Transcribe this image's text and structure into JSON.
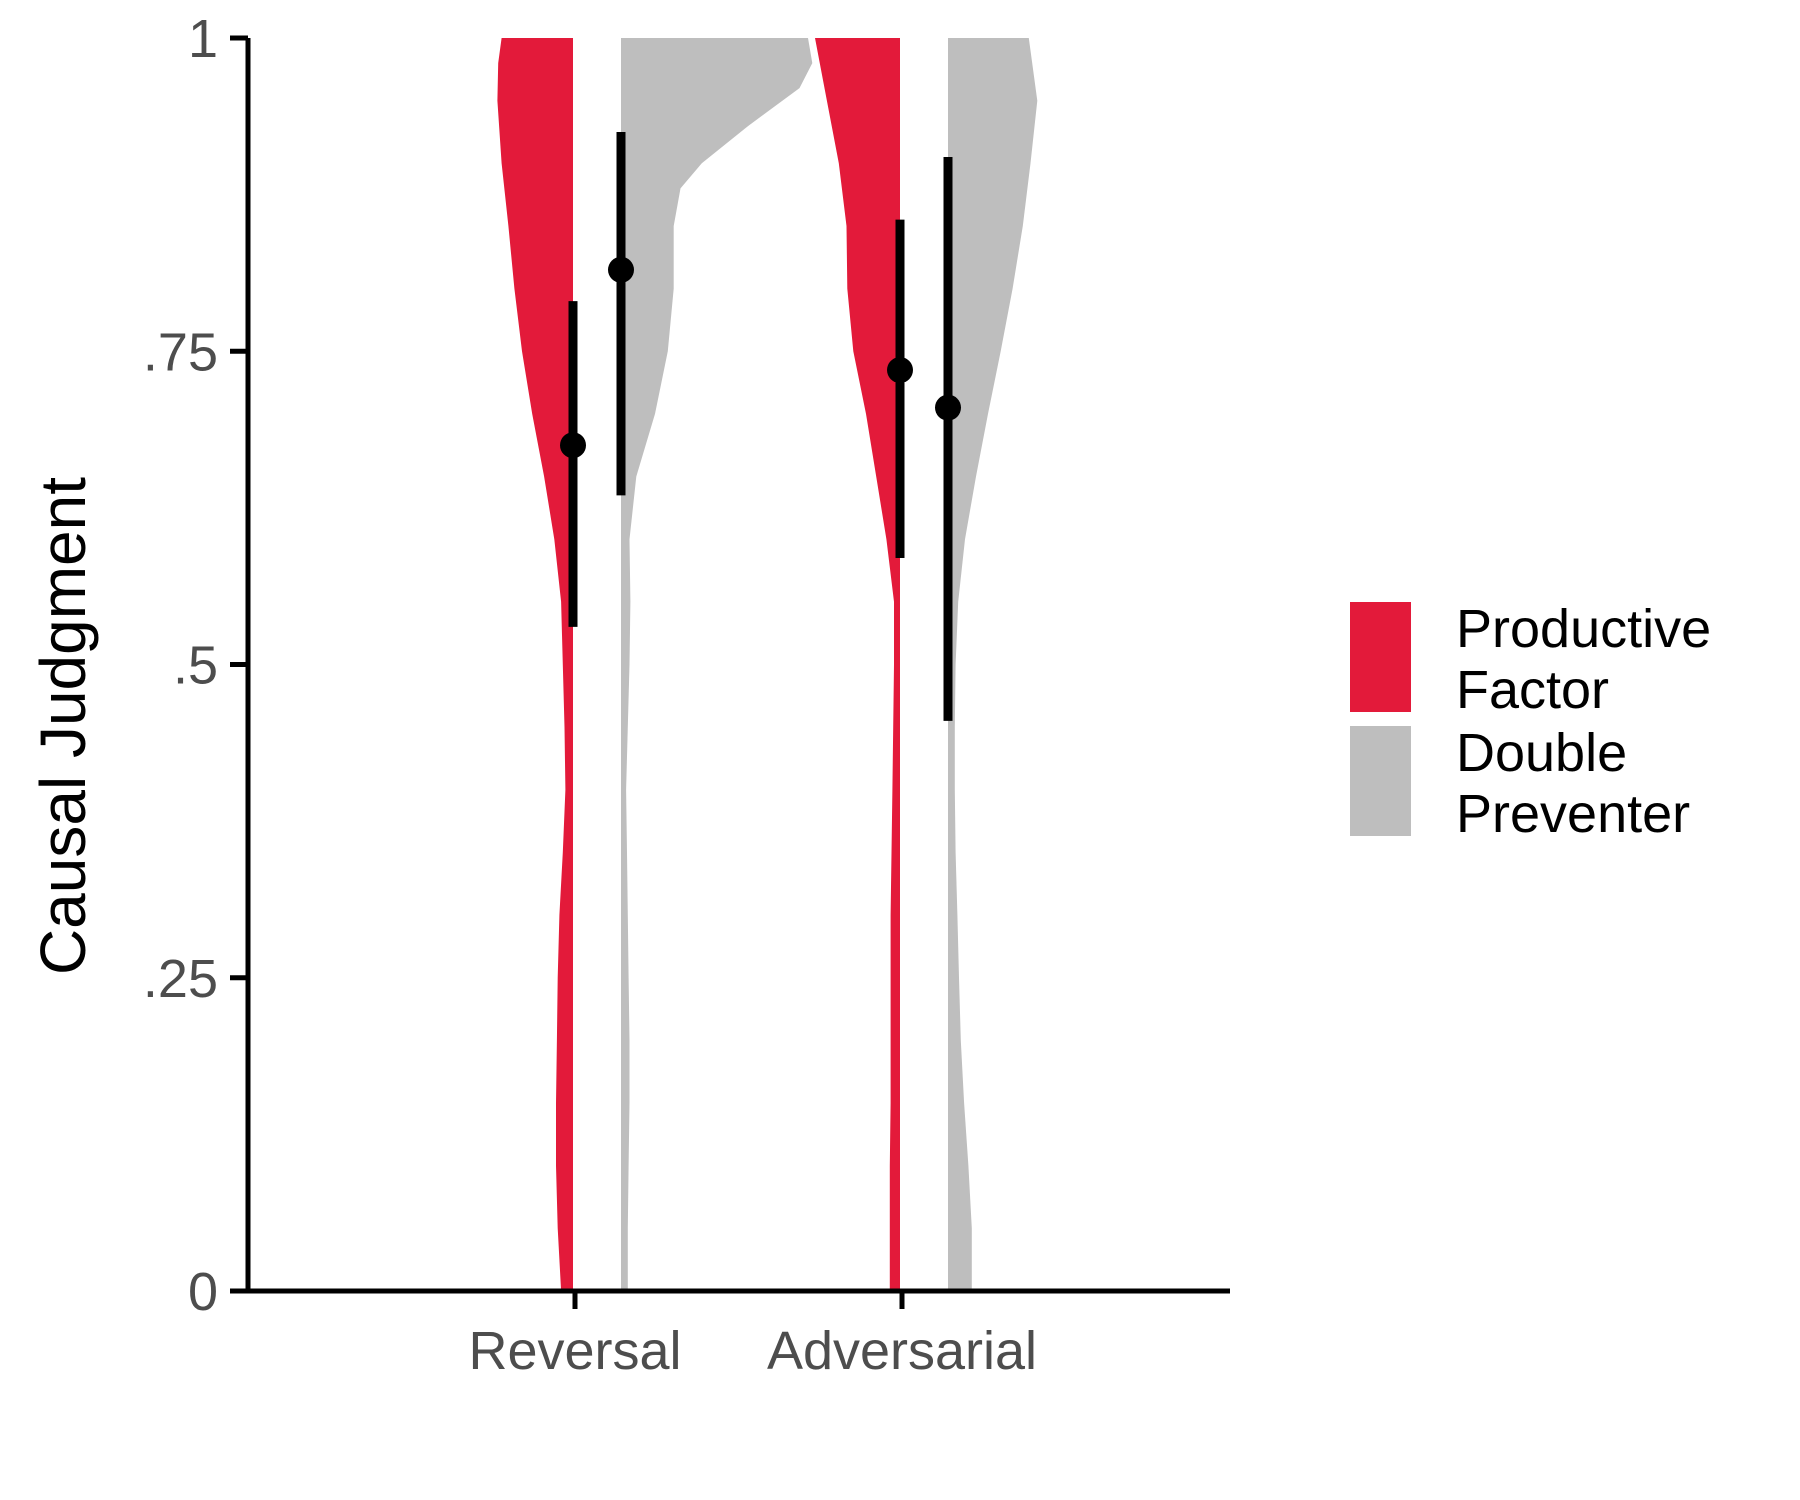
{
  "chart_data": {
    "type": "violin",
    "title": "",
    "xlabel": "",
    "ylabel": "Causal Judgment",
    "ylim": [
      0,
      1
    ],
    "yticks": [
      {
        "value": 0,
        "label": "0"
      },
      {
        "value": 0.25,
        "label": ".25"
      },
      {
        "value": 0.5,
        "label": ".5"
      },
      {
        "value": 0.75,
        "label": ".75"
      },
      {
        "value": 1,
        "label": "1"
      }
    ],
    "categories": [
      "Reversal",
      "Adversarial"
    ],
    "grid": false,
    "legend_position": "right",
    "series": [
      {
        "name": "Productive Factor",
        "name_lines": [
          "Productive",
          "Factor"
        ],
        "color": "#e31a3a",
        "side": "left",
        "points": [
          {
            "category": "Reversal",
            "mean": 0.675,
            "ci_low": 0.53,
            "ci_high": 0.79
          },
          {
            "category": "Adversarial",
            "mean": 0.735,
            "ci_low": 0.585,
            "ci_high": 0.855
          }
        ],
        "density": [
          {
            "category": "Reversal",
            "profile": [
              [
                0.0,
                0.14
              ],
              [
                0.05,
                0.18
              ],
              [
                0.1,
                0.2
              ],
              [
                0.15,
                0.2
              ],
              [
                0.2,
                0.19
              ],
              [
                0.25,
                0.18
              ],
              [
                0.3,
                0.16
              ],
              [
                0.35,
                0.12
              ],
              [
                0.4,
                0.09
              ],
              [
                0.45,
                0.1
              ],
              [
                0.5,
                0.12
              ],
              [
                0.55,
                0.14
              ],
              [
                0.6,
                0.22
              ],
              [
                0.65,
                0.34
              ],
              [
                0.7,
                0.48
              ],
              [
                0.75,
                0.6
              ],
              [
                0.8,
                0.69
              ],
              [
                0.85,
                0.76
              ],
              [
                0.9,
                0.84
              ],
              [
                0.95,
                0.89
              ],
              [
                0.98,
                0.88
              ],
              [
                1.0,
                0.84
              ]
            ]
          },
          {
            "category": "Adversarial",
            "profile": [
              [
                0.0,
                0.12
              ],
              [
                0.05,
                0.12
              ],
              [
                0.1,
                0.12
              ],
              [
                0.15,
                0.11
              ],
              [
                0.2,
                0.11
              ],
              [
                0.25,
                0.11
              ],
              [
                0.3,
                0.11
              ],
              [
                0.35,
                0.1
              ],
              [
                0.4,
                0.09
              ],
              [
                0.45,
                0.08
              ],
              [
                0.5,
                0.07
              ],
              [
                0.55,
                0.07
              ],
              [
                0.6,
                0.16
              ],
              [
                0.65,
                0.28
              ],
              [
                0.7,
                0.4
              ],
              [
                0.75,
                0.55
              ],
              [
                0.8,
                0.62
              ],
              [
                0.85,
                0.63
              ],
              [
                0.9,
                0.72
              ],
              [
                0.95,
                0.86
              ],
              [
                1.0,
                1.0
              ]
            ]
          }
        ]
      },
      {
        "name": "Double Preventer",
        "name_lines": [
          "Double",
          "Preventer"
        ],
        "color": "#bebebe",
        "side": "right",
        "points": [
          {
            "category": "Reversal",
            "mean": 0.815,
            "ci_low": 0.635,
            "ci_high": 0.925
          },
          {
            "category": "Adversarial",
            "mean": 0.705,
            "ci_low": 0.455,
            "ci_high": 0.905
          }
        ],
        "density": [
          {
            "category": "Reversal",
            "profile": [
              [
                0.0,
                0.08
              ],
              [
                0.05,
                0.08
              ],
              [
                0.1,
                0.09
              ],
              [
                0.15,
                0.1
              ],
              [
                0.2,
                0.1
              ],
              [
                0.25,
                0.09
              ],
              [
                0.3,
                0.08
              ],
              [
                0.35,
                0.07
              ],
              [
                0.4,
                0.06
              ],
              [
                0.45,
                0.08
              ],
              [
                0.5,
                0.1
              ],
              [
                0.55,
                0.11
              ],
              [
                0.6,
                0.1
              ],
              [
                0.65,
                0.18
              ],
              [
                0.7,
                0.4
              ],
              [
                0.75,
                0.55
              ],
              [
                0.8,
                0.62
              ],
              [
                0.85,
                0.62
              ],
              [
                0.88,
                0.7
              ],
              [
                0.9,
                0.95
              ],
              [
                0.93,
                1.5
              ],
              [
                0.96,
                2.1
              ],
              [
                0.98,
                2.25
              ],
              [
                1.0,
                2.2
              ]
            ]
          },
          {
            "category": "Adversarial",
            "profile": [
              [
                0.0,
                0.28
              ],
              [
                0.05,
                0.28
              ],
              [
                0.1,
                0.24
              ],
              [
                0.15,
                0.19
              ],
              [
                0.2,
                0.15
              ],
              [
                0.25,
                0.13
              ],
              [
                0.3,
                0.11
              ],
              [
                0.35,
                0.09
              ],
              [
                0.4,
                0.08
              ],
              [
                0.45,
                0.08
              ],
              [
                0.5,
                0.09
              ],
              [
                0.55,
                0.12
              ],
              [
                0.6,
                0.2
              ],
              [
                0.65,
                0.33
              ],
              [
                0.7,
                0.47
              ],
              [
                0.75,
                0.62
              ],
              [
                0.8,
                0.76
              ],
              [
                0.85,
                0.88
              ],
              [
                0.9,
                0.97
              ],
              [
                0.95,
                1.05
              ],
              [
                1.0,
                0.95
              ]
            ]
          }
        ]
      }
    ]
  }
}
